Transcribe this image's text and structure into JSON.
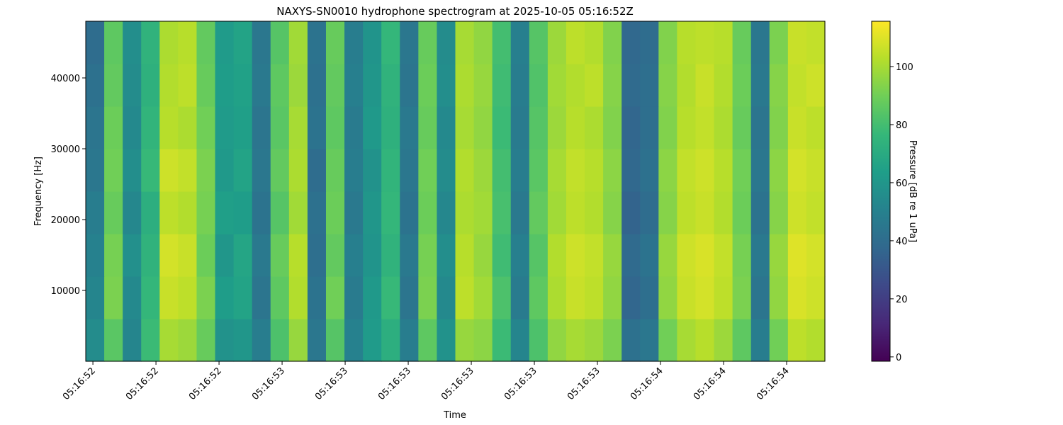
{
  "chart_data": {
    "type": "spectrogram",
    "title": "NAXYS-SN0010 hydrophone spectrogram at 2025-10-05 05:16:52Z",
    "xlabel": "Time",
    "ylabel": "Frequency [Hz]",
    "colorbar_label": "Pressure [dB re 1 uPa]",
    "colormap": "viridis",
    "xlim": [
      52.653,
      54.411
    ],
    "xticks": [
      {
        "value": 52.67,
        "label": "05:16:52"
      },
      {
        "value": 52.82,
        "label": "05:16:52"
      },
      {
        "value": 52.97,
        "label": "05:16:52"
      },
      {
        "value": 53.12,
        "label": "05:16:53"
      },
      {
        "value": 53.27,
        "label": "05:16:53"
      },
      {
        "value": 53.42,
        "label": "05:16:53"
      },
      {
        "value": 53.57,
        "label": "05:16:53"
      },
      {
        "value": 53.72,
        "label": "05:16:53"
      },
      {
        "value": 53.87,
        "label": "05:16:53"
      },
      {
        "value": 54.02,
        "label": "05:16:54"
      },
      {
        "value": 54.17,
        "label": "05:16:54"
      },
      {
        "value": 54.32,
        "label": "05:16:54"
      }
    ],
    "ylim": [
      0,
      48000
    ],
    "yticks": [
      10000,
      20000,
      30000,
      40000
    ],
    "clim": [
      -1.5,
      115.6
    ],
    "cticks": [
      0,
      20,
      40,
      60,
      80,
      100
    ],
    "z": [
      [
        55,
        85,
        52,
        78,
        100,
        98,
        88,
        58,
        60,
        48,
        82,
        97,
        45,
        84,
        50,
        62,
        72,
        48,
        86,
        58,
        97,
        95,
        78,
        52,
        82,
        96,
        100,
        98,
        92,
        42,
        45,
        90,
        100,
        103,
        98,
        86,
        48,
        90,
        104,
        102
      ],
      [
        52,
        92,
        54,
        76,
        106,
        104,
        92,
        63,
        66,
        44,
        86,
        102,
        43,
        90,
        47,
        61,
        77,
        44,
        92,
        54,
        104,
        99,
        82,
        47,
        86,
        101,
        106,
        104,
        96,
        37,
        41,
        96,
        106,
        108,
        104,
        92,
        44,
        96,
        109,
        107
      ],
      [
        50,
        91,
        57,
        74,
        108,
        106,
        89,
        60,
        67,
        46,
        88,
        103,
        41,
        87,
        49,
        59,
        74,
        46,
        91,
        56,
        103,
        97,
        79,
        49,
        84,
        102,
        107,
        105,
        97,
        39,
        43,
        97,
        107,
        109,
        105,
        91,
        46,
        97,
        110,
        108
      ],
      [
        48,
        88,
        53,
        72,
        104,
        102,
        91,
        64,
        63,
        43,
        84,
        99,
        42,
        89,
        46,
        60,
        76,
        43,
        89,
        53,
        101,
        99,
        81,
        46,
        87,
        99,
        104,
        102,
        94,
        36,
        40,
        94,
        104,
        106,
        102,
        89,
        43,
        94,
        107,
        105
      ],
      [
        45,
        90,
        56,
        77,
        107,
        105,
        92,
        61,
        66,
        45,
        87,
        101,
        40,
        88,
        48,
        58,
        75,
        45,
        90,
        55,
        102,
        98,
        80,
        48,
        85,
        100,
        105,
        103,
        95,
        38,
        42,
        95,
        105,
        107,
        103,
        90,
        45,
        95,
        108,
        106
      ],
      [
        44,
        89,
        54,
        75,
        103,
        101,
        90,
        62,
        64,
        44,
        85,
        100,
        43,
        86,
        47,
        61,
        73,
        46,
        88,
        54,
        100,
        96,
        78,
        47,
        84,
        98,
        103,
        101,
        93,
        37,
        41,
        93,
        103,
        105,
        101,
        88,
        44,
        93,
        106,
        104
      ],
      [
        42,
        87,
        55,
        73,
        102,
        104,
        88,
        63,
        65,
        46,
        86,
        98,
        42,
        87,
        49,
        60,
        74,
        44,
        89,
        56,
        101,
        97,
        79,
        48,
        83,
        99,
        102,
        104,
        94,
        39,
        41,
        94,
        102,
        106,
        102,
        89,
        46,
        94,
        105,
        107
      ],
      [
        40,
        86,
        56,
        74,
        101,
        103,
        87,
        62,
        66,
        45,
        84,
        99,
        43,
        88,
        48,
        59,
        76,
        45,
        88,
        55,
        100,
        96,
        80,
        49,
        84,
        98,
        104,
        102,
        93,
        38,
        40,
        93,
        103,
        104,
        103,
        88,
        45,
        92,
        106,
        105
      ]
    ]
  }
}
